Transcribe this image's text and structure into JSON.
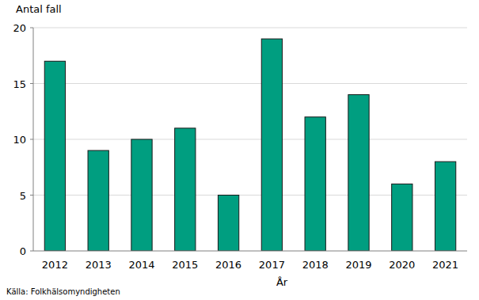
{
  "chart_data": {
    "type": "bar",
    "y_label": "Antal fall",
    "x_label": "År",
    "source": "Källa: Folkhälsomyndigheten",
    "categories": [
      "2012",
      "2013",
      "2014",
      "2015",
      "2016",
      "2017",
      "2018",
      "2019",
      "2020",
      "2021"
    ],
    "values": [
      17,
      9,
      10,
      11,
      5,
      19,
      12,
      14,
      6,
      8
    ],
    "color": "#009e80",
    "ylim": [
      0,
      20
    ],
    "yticks": [
      0,
      5,
      10,
      15,
      20
    ],
    "grid": true
  }
}
